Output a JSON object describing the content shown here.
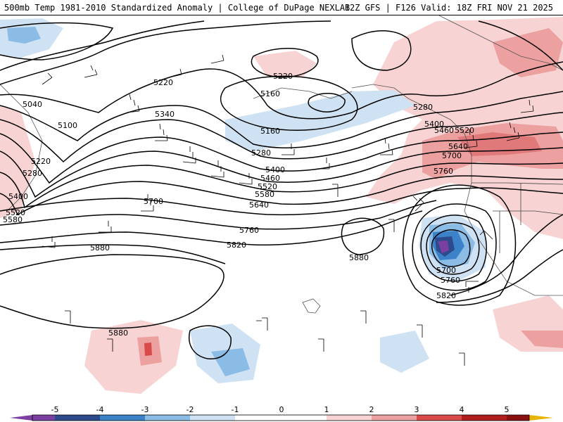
{
  "header": {
    "title_left": "500mb Temp 1981-2010 Standardized Anomaly | College of DuPage NEXLAB",
    "title_right": "12Z GFS | F126 Valid: 18Z FRI NOV 21 2025"
  },
  "colors": {
    "contour": "#000000",
    "neg5": "#7a3fa0",
    "neg4": "#2c4a8c",
    "neg3": "#3b82c9",
    "neg2": "#8bbce6",
    "neg1": "#cfe2f3",
    "pos1": "#f7d3d3",
    "pos2": "#eda0a0",
    "pos3": "#d94a4a",
    "pos4": "#b01d1d",
    "pos5": "#e8b400"
  },
  "contour_labels": [
    "5220",
    "5160",
    "5220",
    "5280",
    "5340",
    "5400",
    "5460",
    "5520",
    "5640",
    "5700",
    "5760",
    "5040",
    "5100",
    "5220",
    "5280",
    "5400",
    "5520",
    "5580",
    "5700",
    "5640",
    "5760",
    "5820",
    "5880",
    "5880",
    "5880",
    "5700",
    "5760",
    "5820",
    "5160",
    "5280",
    "5400",
    "5460",
    "5520",
    "5580"
  ],
  "legend": {
    "ticks": [
      "-5",
      "-4",
      "-3",
      "-2",
      "-1",
      "0",
      "1",
      "2",
      "3",
      "4",
      "5"
    ]
  }
}
